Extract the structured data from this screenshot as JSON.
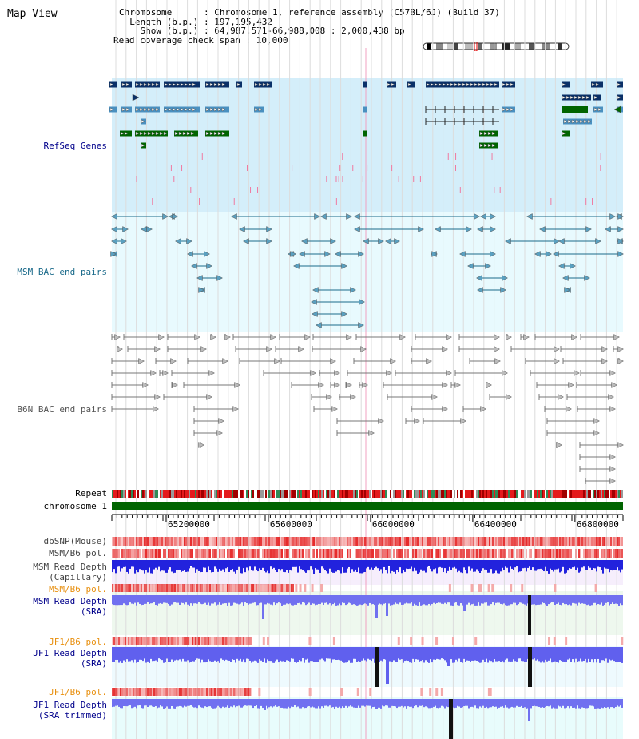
{
  "title": "Map View",
  "info": {
    "chromosome": "Chromosome      : Chromosome 1, reference assembly (C57BL/6J) (Build 37)",
    "length": "  Length (b.p.) : 197,195,432",
    "show": "    Show (b.p.) : 64,987,571-66,988,008 : 2,000,438 bp",
    "read_coverage": "Read coverage check span : 10,000"
  },
  "tracks": {
    "refseq": "RefSeq Genes",
    "msm_bac": "MSM BAC end pairs",
    "b6n_bac": "B6N BAC end pairs",
    "repeat": "Repeat",
    "chromosome": "chromosome 1",
    "dbsnp": "dbSNP(Mouse)",
    "msm_b6_pol1": "MSM/B6 pol.",
    "msm_read_cap_1": "MSM Read Depth",
    "msm_read_cap_2": "(Capillary)",
    "msm_b6_pol2": "MSM/B6 pol.",
    "msm_read_sra_1": "MSM Read Depth",
    "msm_read_sra_2": "(SRA)",
    "jf1_b6_pol1": "JF1/B6 pol.",
    "jf1_read_sra_1": "JF1 Read Depth",
    "jf1_read_sra_2": "(SRA)",
    "jf1_b6_pol2": "JF1/B6 pol.",
    "jf1_read_trim_1": "JF1 Read Depth",
    "jf1_read_trim_2": "(SRA trimmed)"
  },
  "ruler": {
    "start": 64987571,
    "end": 66988008,
    "ticks": [
      "65200000",
      "65600000",
      "66000000",
      "66400000",
      "66800000"
    ]
  },
  "colors": {
    "refseq_bg": "#d4eefa",
    "msm_bg": "#e8fafe",
    "gene_dark": "#0a3068",
    "gene_mid": "#4a90c0",
    "gene_green": "#006400",
    "msm_line": "#1a6a8a",
    "b6n_line": "#777777",
    "chrom_bar": "#006400",
    "accent_label": "#00008b",
    "orange_label": "#e89010"
  }
}
